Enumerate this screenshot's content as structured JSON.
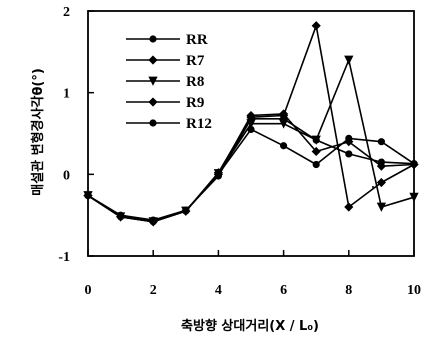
{
  "chart_data": {
    "type": "line",
    "xlabel": "축방향 상대거리(X / L₀)",
    "ylabel": "매설관 변형경사각θ(°)",
    "xlim": [
      0,
      10
    ],
    "ylim": [
      -1,
      2
    ],
    "xticks": [
      "0",
      "2",
      "4",
      "6",
      "8",
      "10"
    ],
    "yticks": [
      "2",
      "1",
      "0",
      "-1"
    ],
    "grid": false,
    "legend_position": "top-left",
    "x": [
      0,
      1,
      2,
      3,
      4,
      5,
      6,
      7,
      8,
      9,
      10
    ],
    "series": [
      {
        "name": "RR",
        "marker": "circle",
        "values": [
          -0.26,
          -0.5,
          -0.56,
          -0.44,
          -0.02,
          0.68,
          0.68,
          0.42,
          0.25,
          0.15,
          0.13
        ]
      },
      {
        "name": "R7",
        "marker": "diamond",
        "values": [
          -0.26,
          -0.52,
          -0.58,
          -0.45,
          0.0,
          0.72,
          0.74,
          0.28,
          0.4,
          0.1,
          0.12
        ]
      },
      {
        "name": "R8",
        "marker": "triangle",
        "values": [
          -0.26,
          -0.52,
          -0.58,
          -0.45,
          0.01,
          0.62,
          0.62,
          0.42,
          1.4,
          -0.4,
          -0.28
        ]
      },
      {
        "name": "R9",
        "marker": "diamond",
        "values": [
          -0.26,
          -0.52,
          -0.58,
          -0.45,
          0.02,
          0.7,
          0.72,
          1.82,
          -0.4,
          -0.1,
          0.12
        ]
      },
      {
        "name": "R12",
        "marker": "circle",
        "values": [
          -0.26,
          -0.52,
          -0.58,
          -0.45,
          0.0,
          0.55,
          0.35,
          0.12,
          0.44,
          0.4,
          0.13
        ]
      }
    ],
    "annotations": [
      "'"
    ]
  }
}
